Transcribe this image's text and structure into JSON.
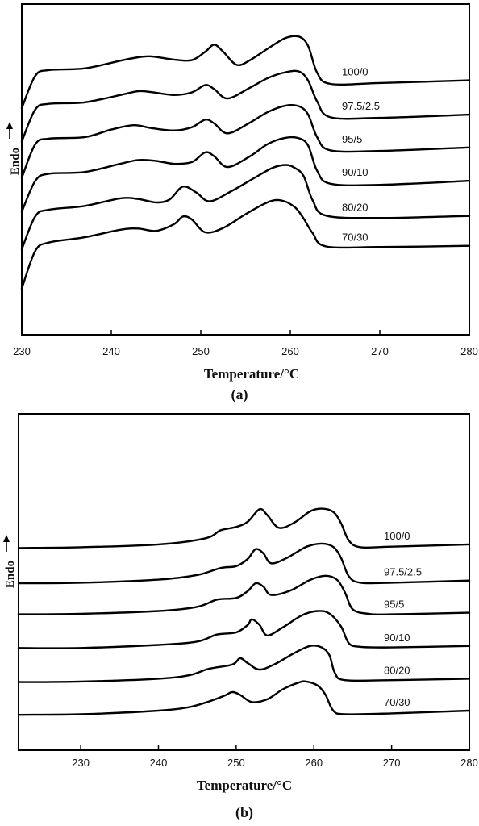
{
  "chart_data": [
    {
      "type": "line",
      "panel_label": "(a)",
      "xlabel": "Temperature/°C",
      "ylabel": "Endo",
      "xlim": [
        230,
        280
      ],
      "xticks": [
        230,
        240,
        250,
        260,
        270,
        280
      ],
      "ylim": [
        0,
        100
      ],
      "grid": false,
      "series": [
        {
          "name": "100/0",
          "points": [
            [
              230,
              76
            ],
            [
              231.5,
              87
            ],
            [
              233,
              89
            ],
            [
              237,
              89.6
            ],
            [
              241,
              92.2
            ],
            [
              243,
              93.4
            ],
            [
              244.5,
              93.7
            ],
            [
              247,
              92.6
            ],
            [
              249,
              92.4
            ],
            [
              250.5,
              95.3
            ],
            [
              251.5,
              97.7
            ],
            [
              252.5,
              95.3
            ],
            [
              254,
              90.8
            ],
            [
              255.5,
              92.4
            ],
            [
              257.5,
              96.4
            ],
            [
              259.5,
              100
            ],
            [
              261,
              100.4
            ],
            [
              262,
              97.2
            ],
            [
              263,
              88.1
            ],
            [
              264.5,
              84.3
            ],
            [
              270,
              84.6
            ],
            [
              280,
              85.5
            ]
          ]
        },
        {
          "name": "97.5/2.5",
          "points": [
            [
              230,
              64.6
            ],
            [
              231.5,
              75.5
            ],
            [
              233,
              77.5
            ],
            [
              237,
              78
            ],
            [
              241,
              80.5
            ],
            [
              243,
              81.8
            ],
            [
              244.5,
              81.5
            ],
            [
              247,
              80.5
            ],
            [
              249,
              81.4
            ],
            [
              250.5,
              83.9
            ],
            [
              251.5,
              82.5
            ],
            [
              253,
              79.3
            ],
            [
              255.5,
              83
            ],
            [
              257.5,
              86.3
            ],
            [
              259.5,
              88.3
            ],
            [
              261,
              88.5
            ],
            [
              262,
              85.4
            ],
            [
              263,
              78.3
            ],
            [
              264.5,
              72.9
            ],
            [
              270,
              72.7
            ],
            [
              280,
              73.8
            ]
          ]
        },
        {
          "name": "95/5",
          "points": [
            [
              230,
              52.2
            ],
            [
              231.5,
              63.6
            ],
            [
              233,
              65.6
            ],
            [
              237,
              66.1
            ],
            [
              240,
              68.7
            ],
            [
              242.5,
              70.2
            ],
            [
              244.5,
              69.2
            ],
            [
              247,
              68.4
            ],
            [
              249,
              69.5
            ],
            [
              250.5,
              72.1
            ],
            [
              251.5,
              70.8
            ],
            [
              253,
              67.4
            ],
            [
              255.5,
              71.1
            ],
            [
              257.5,
              74.7
            ],
            [
              259.5,
              76.9
            ],
            [
              261,
              76.6
            ],
            [
              262,
              73.8
            ],
            [
              263,
              66.1
            ],
            [
              264.5,
              61.6
            ],
            [
              270,
              61.4
            ],
            [
              280,
              62.6
            ]
          ]
        },
        {
          "name": "90/10",
          "points": [
            [
              230,
              40.6
            ],
            [
              231.5,
              51.1
            ],
            [
              233,
              53.6
            ],
            [
              237,
              54.2
            ],
            [
              241,
              57
            ],
            [
              243,
              58.3
            ],
            [
              245,
              58
            ],
            [
              247,
              57
            ],
            [
              249,
              57.6
            ],
            [
              250.5,
              60.9
            ],
            [
              251.5,
              59.6
            ],
            [
              253,
              55.9
            ],
            [
              255.5,
              59.6
            ],
            [
              257.5,
              63.8
            ],
            [
              259.5,
              65.9
            ],
            [
              261,
              65.7
            ],
            [
              262,
              63.2
            ],
            [
              263,
              54.6
            ],
            [
              264.5,
              50.2
            ],
            [
              270,
              49.8
            ],
            [
              280,
              51.2
            ]
          ]
        },
        {
          "name": "80/20",
          "points": [
            [
              230,
              27.8
            ],
            [
              231.5,
              39
            ],
            [
              233,
              41.3
            ],
            [
              237,
              42.6
            ],
            [
              241,
              45.2
            ],
            [
              243,
              45
            ],
            [
              245,
              43.8
            ],
            [
              246.5,
              44.8
            ],
            [
              248,
              49.2
            ],
            [
              249.5,
              47.2
            ],
            [
              251,
              44.2
            ],
            [
              253.5,
              47.8
            ],
            [
              256,
              52.2
            ],
            [
              258,
              55.6
            ],
            [
              259.5,
              56.6
            ],
            [
              260.5,
              55.6
            ],
            [
              261.5,
              52.8
            ],
            [
              262.5,
              44.5
            ],
            [
              264,
              39.3
            ],
            [
              270,
              38.5
            ],
            [
              280,
              39.2
            ]
          ]
        },
        {
          "name": "70/30",
          "points": [
            [
              230,
              14.4
            ],
            [
              231.5,
              27.2
            ],
            [
              233,
              30.1
            ],
            [
              237,
              31.9
            ],
            [
              241,
              34.5
            ],
            [
              243,
              34.9
            ],
            [
              245,
              34.1
            ],
            [
              247,
              36.4
            ],
            [
              248,
              39
            ],
            [
              249,
              38
            ],
            [
              250.5,
              33.6
            ],
            [
              252.5,
              35.1
            ],
            [
              255,
              39.8
            ],
            [
              257.5,
              43.9
            ],
            [
              259,
              44.5
            ],
            [
              260.5,
              42.2
            ],
            [
              261.5,
              38.3
            ],
            [
              262.5,
              33.3
            ],
            [
              264,
              28.8
            ],
            [
              270,
              28.6
            ],
            [
              280,
              29
            ]
          ]
        }
      ]
    },
    {
      "type": "line",
      "panel_label": "(b)",
      "xlabel": "Temperature/°C",
      "ylabel": "Endo",
      "xlim": [
        222,
        280
      ],
      "xticks": [
        230,
        240,
        250,
        260,
        270,
        280
      ],
      "ylim": [
        0,
        100
      ],
      "grid": false,
      "series": [
        {
          "name": "100/0",
          "points": [
            [
              222,
              71.1
            ],
            [
              230,
              71.4
            ],
            [
              240,
              72.4
            ],
            [
              246,
              74.6
            ],
            [
              248,
              77.5
            ],
            [
              250,
              78.7
            ],
            [
              251.5,
              80.6
            ],
            [
              253,
              85.1
            ],
            [
              254,
              83
            ],
            [
              255.5,
              78.4
            ],
            [
              257.5,
              80.3
            ],
            [
              259.5,
              84.3
            ],
            [
              261,
              85.3
            ],
            [
              262.5,
              84.1
            ],
            [
              263.5,
              80
            ],
            [
              264.5,
              73.8
            ],
            [
              266,
              71.4
            ],
            [
              270,
              71.6
            ],
            [
              280,
              72.4
            ]
          ]
        },
        {
          "name": "97.5/2.5",
          "points": [
            [
              222,
              58.4
            ],
            [
              230,
              58.6
            ],
            [
              240,
              59.7
            ],
            [
              245,
              61.4
            ],
            [
              248,
              63.9
            ],
            [
              250,
              64.6
            ],
            [
              251.5,
              67.2
            ],
            [
              252.5,
              70.7
            ],
            [
              253.5,
              69.2
            ],
            [
              254.5,
              65.6
            ],
            [
              256.5,
              67.5
            ],
            [
              259,
              71.5
            ],
            [
              261,
              72.7
            ],
            [
              262.5,
              71.5
            ],
            [
              263.5,
              67.5
            ],
            [
              264.5,
              60.9
            ],
            [
              266,
              58.6
            ],
            [
              270,
              58.6
            ],
            [
              280,
              59.4
            ]
          ]
        },
        {
          "name": "95/5",
          "points": [
            [
              222,
              47.2
            ],
            [
              230,
              47.4
            ],
            [
              240,
              48.4
            ],
            [
              245,
              49.9
            ],
            [
              247.5,
              52.5
            ],
            [
              250,
              53.1
            ],
            [
              251.5,
              55.6
            ],
            [
              252.5,
              58.4
            ],
            [
              253.5,
              57.2
            ],
            [
              254.5,
              54.2
            ],
            [
              257,
              55.8
            ],
            [
              259.5,
              59.6
            ],
            [
              261.5,
              61.1
            ],
            [
              263,
              59.6
            ],
            [
              264,
              55.1
            ],
            [
              265,
              49
            ],
            [
              267,
              47.4
            ],
            [
              270,
              47.2
            ],
            [
              280,
              47.8
            ]
          ]
        },
        {
          "name": "90/10",
          "points": [
            [
              222,
              35.1
            ],
            [
              230,
              35.1
            ],
            [
              240,
              36.2
            ],
            [
              245,
              37.4
            ],
            [
              247.5,
              39.9
            ],
            [
              250,
              40.7
            ],
            [
              251.5,
              43.4
            ],
            [
              252,
              45.4
            ],
            [
              253,
              43.4
            ],
            [
              254,
              39.6
            ],
            [
              256,
              42.5
            ],
            [
              258.5,
              46.9
            ],
            [
              260.5,
              48.4
            ],
            [
              262,
              47.5
            ],
            [
              263.5,
              42.8
            ],
            [
              264.5,
              36.8
            ],
            [
              266,
              35.5
            ],
            [
              270,
              35.3
            ],
            [
              280,
              35.8
            ]
          ]
        },
        {
          "name": "80/20",
          "points": [
            [
              222,
              22.8
            ],
            [
              230,
              23
            ],
            [
              240,
              24
            ],
            [
              244,
              25.3
            ],
            [
              246.5,
              27.6
            ],
            [
              249.5,
              29.1
            ],
            [
              250.5,
              31.4
            ],
            [
              251.5,
              29.6
            ],
            [
              253,
              27.3
            ],
            [
              255,
              29.3
            ],
            [
              257.5,
              33.3
            ],
            [
              259.5,
              35.8
            ],
            [
              261,
              35.3
            ],
            [
              262,
              32.5
            ],
            [
              262.7,
              26.1
            ],
            [
              264,
              23.5
            ],
            [
              270,
              23.5
            ],
            [
              280,
              24
            ]
          ]
        },
        {
          "name": "70/30",
          "points": [
            [
              222,
              11
            ],
            [
              230,
              11.2
            ],
            [
              240,
              12.5
            ],
            [
              244,
              13.8
            ],
            [
              246.5,
              15.8
            ],
            [
              248.5,
              17.9
            ],
            [
              249.5,
              19.2
            ],
            [
              250.5,
              18.2
            ],
            [
              252,
              15.6
            ],
            [
              254,
              16.6
            ],
            [
              256,
              20.2
            ],
            [
              258,
              22.6
            ],
            [
              259,
              23
            ],
            [
              260.5,
              21.5
            ],
            [
              261.5,
              18.2
            ],
            [
              262.5,
              12.5
            ],
            [
              264,
              11.2
            ],
            [
              270,
              11.5
            ],
            [
              280,
              12.5
            ]
          ]
        }
      ]
    }
  ]
}
